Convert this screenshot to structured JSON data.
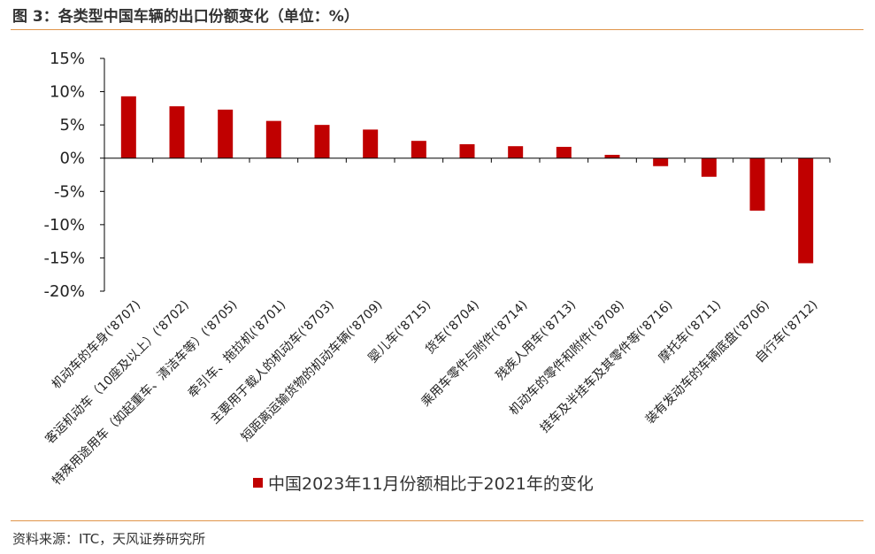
{
  "header": {
    "title": "图 3：各类型中国车辆的出口份额变化（单位：%）"
  },
  "footer": {
    "source": "资料来源：ITC，天风证券研究所"
  },
  "colors": {
    "bar": "#c00000",
    "rule": "#e0954a",
    "axis": "#000000"
  },
  "chart_data": {
    "type": "bar",
    "title": "",
    "xlabel": "",
    "ylabel": "",
    "ylim": [
      -20,
      15
    ],
    "yticks": [
      15,
      10,
      5,
      0,
      -5,
      -10,
      -15,
      -20
    ],
    "ytick_labels": [
      "15%",
      "10%",
      "5%",
      "0%",
      "-5%",
      "-10%",
      "-15%",
      "-20%"
    ],
    "categories": [
      "机动车的车身('8707)",
      "客运机动车（10座及以上）('8702)",
      "特殊用途用车（如起重车、清洁车等）('8705)",
      "牵引车、拖拉机('8701)",
      "主要用于载人的机动车('8703)",
      "短距离运输货物的机动车辆('8709)",
      "婴儿车('8715)",
      "货车('8704)",
      "乘用车零件与附件('8714)",
      "残疾人用车('8713)",
      "机动车的零件和附件('8708)",
      "挂车及半挂车及其零件等('8716)",
      "摩托车('8711)",
      "装有发动车的车辆底盘('8706)",
      "自行车('8712)"
    ],
    "series": [
      {
        "name": "中国2023年11月份额相比于2021年的变化",
        "values": [
          9.3,
          7.8,
          7.3,
          5.6,
          5.0,
          4.3,
          2.6,
          2.1,
          1.8,
          1.7,
          0.5,
          -1.2,
          -2.8,
          -7.9,
          -15.8
        ]
      }
    ],
    "grid": false,
    "legend_position": "bottom-center"
  }
}
